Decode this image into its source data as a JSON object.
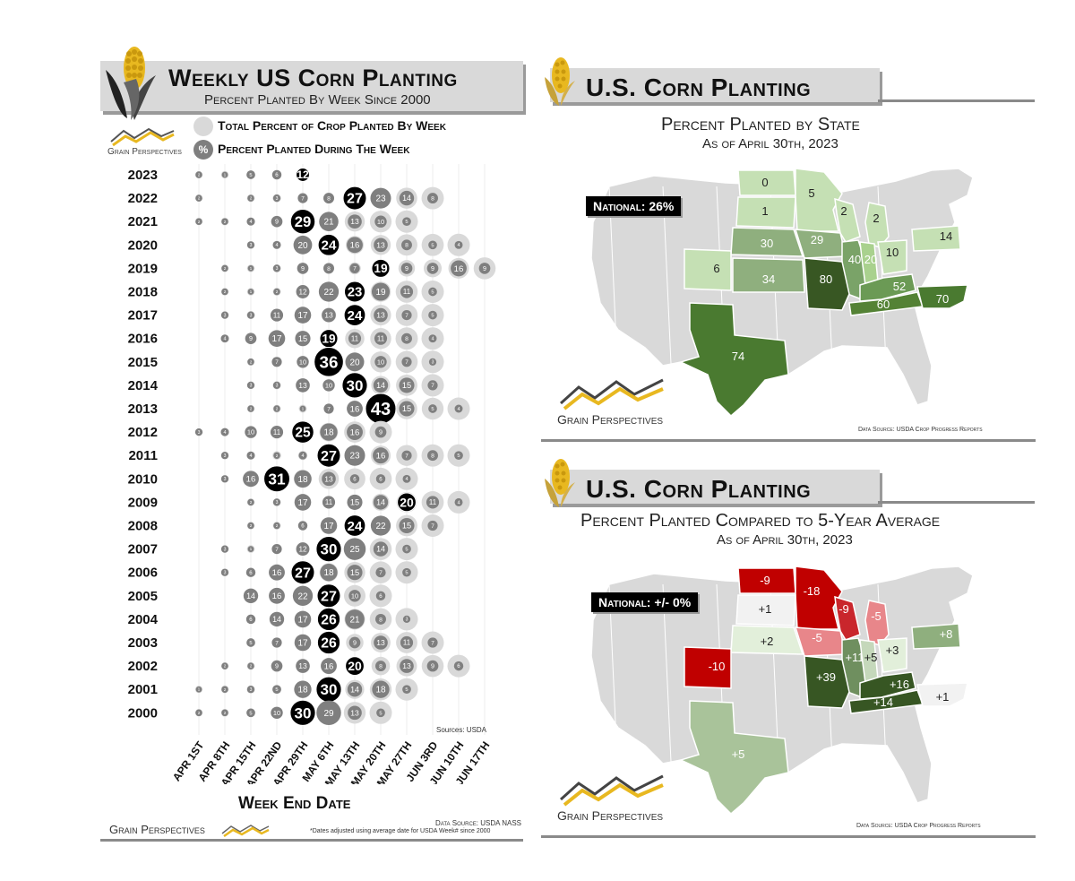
{
  "left": {
    "title": "Weekly US Corn Planting",
    "subtitle": "Percent Planted By Week Since 2000",
    "brand": "Grain Perspectives",
    "legend": [
      {
        "symbol": "",
        "label": "Total Percent of Crop Planted By Week"
      },
      {
        "symbol": "%",
        "label": "Percent Planted During The Week"
      }
    ],
    "sources_note": "Sources: USDA",
    "x_axis_title": "Week End Date",
    "data_source": "Data Source: USDA NASS",
    "footnote": "*Dates adjusted using average date for USDA Week# since 2000",
    "footer_brand": "Grain Perspectives"
  },
  "chart_data": {
    "type": "scatter",
    "title": "Weekly US Corn Planting",
    "subtitle": "Percent Planted By Week Since 2000",
    "xlabel": "Week End Date",
    "weeks": [
      "Apr 1st",
      "Apr 8th",
      "Apr 15th",
      "Apr 22nd",
      "Apr 29th",
      "May 6th",
      "May 13th",
      "May 20th",
      "May 27th",
      "Jun 3rd",
      "Jun 10th",
      "Jun 17th"
    ],
    "years": [
      "2023",
      "2022",
      "2021",
      "2020",
      "2019",
      "2018",
      "2017",
      "2016",
      "2015",
      "2014",
      "2013",
      "2012",
      "2011",
      "2010",
      "2009",
      "2008",
      "2007",
      "2006",
      "2005",
      "2004",
      "2003",
      "2002",
      "2001",
      "2000"
    ],
    "weekly_percent": [
      [
        2,
        1,
        5,
        6,
        12,
        null,
        null,
        null,
        null,
        null,
        null,
        null
      ],
      [
        2,
        null,
        2,
        3,
        7,
        8,
        27,
        23,
        14,
        8,
        null,
        null
      ],
      [
        2,
        2,
        4,
        9,
        29,
        21,
        13,
        10,
        5,
        null,
        null,
        null
      ],
      [
        null,
        null,
        3,
        4,
        20,
        24,
        16,
        13,
        8,
        5,
        4,
        null
      ],
      [
        null,
        2,
        1,
        3,
        9,
        8,
        7,
        19,
        9,
        9,
        16,
        9
      ],
      [
        null,
        2,
        1,
        2,
        12,
        22,
        23,
        19,
        11,
        5,
        null,
        null
      ],
      [
        null,
        3,
        3,
        11,
        17,
        13,
        24,
        13,
        7,
        5,
        null,
        null
      ],
      [
        null,
        4,
        9,
        17,
        15,
        19,
        11,
        11,
        8,
        4,
        null,
        null
      ],
      [
        null,
        null,
        2,
        7,
        10,
        36,
        20,
        10,
        7,
        3,
        null,
        null
      ],
      [
        null,
        null,
        3,
        3,
        13,
        10,
        30,
        14,
        15,
        7,
        null,
        null
      ],
      [
        null,
        null,
        2,
        2,
        1,
        7,
        16,
        43,
        15,
        5,
        4,
        null
      ],
      [
        3,
        4,
        10,
        11,
        25,
        18,
        16,
        9,
        null,
        null,
        null,
        null
      ],
      [
        null,
        3,
        4,
        2,
        4,
        27,
        23,
        16,
        7,
        8,
        5,
        null
      ],
      [
        null,
        3,
        16,
        31,
        18,
        13,
        6,
        6,
        4,
        null,
        null,
        null
      ],
      [
        null,
        null,
        2,
        3,
        17,
        11,
        15,
        14,
        20,
        11,
        4,
        null
      ],
      [
        null,
        null,
        2,
        2,
        6,
        17,
        24,
        22,
        15,
        7,
        null,
        null
      ],
      [
        null,
        3,
        1,
        7,
        12,
        30,
        25,
        14,
        5,
        null,
        null,
        null
      ],
      [
        null,
        3,
        6,
        16,
        27,
        18,
        15,
        7,
        5,
        null,
        null,
        null
      ],
      [
        null,
        null,
        14,
        16,
        22,
        27,
        10,
        6,
        null,
        null,
        null,
        null
      ],
      [
        null,
        null,
        6,
        14,
        17,
        26,
        21,
        8,
        3,
        null,
        null,
        null
      ],
      [
        null,
        null,
        5,
        7,
        17,
        26,
        9,
        13,
        11,
        7,
        null,
        null
      ],
      [
        null,
        2,
        2,
        9,
        13,
        16,
        20,
        8,
        13,
        9,
        6,
        null
      ],
      [
        1,
        2,
        3,
        5,
        18,
        30,
        14,
        18,
        5,
        null,
        null,
        null
      ],
      [
        2,
        2,
        5,
        10,
        30,
        29,
        13,
        5,
        null,
        null,
        null,
        null
      ]
    ]
  },
  "map1": {
    "title": "U.S. Corn Planting",
    "subtitle": "Percent Planted by State",
    "date": "As of April 30th, 2023",
    "national": "National: 26%",
    "brand": "Grain Perspectives",
    "source": "Data Source: USDA Crop Progress Reports",
    "states": [
      {
        "state": "ND",
        "value": "0",
        "color": "#c5e0b4"
      },
      {
        "state": "MN",
        "value": "5",
        "color": "#c5e0b4"
      },
      {
        "state": "SD",
        "value": "1",
        "color": "#c5e0b4"
      },
      {
        "state": "WI",
        "value": "2",
        "color": "#c5e0b4"
      },
      {
        "state": "MI",
        "value": "2",
        "color": "#c5e0b4"
      },
      {
        "state": "NE",
        "value": "30",
        "color": "#8faf7e"
      },
      {
        "state": "IA",
        "value": "29",
        "color": "#8faf7e"
      },
      {
        "state": "IL",
        "value": "40",
        "color": "#7aa368"
      },
      {
        "state": "IN",
        "value": "20",
        "color": "#a9d18e"
      },
      {
        "state": "OH",
        "value": "10",
        "color": "#c5e0b4"
      },
      {
        "state": "PA",
        "value": "14",
        "color": "#c5e0b4"
      },
      {
        "state": "CO",
        "value": "6",
        "color": "#c5e0b4"
      },
      {
        "state": "KS",
        "value": "34",
        "color": "#8faf7e"
      },
      {
        "state": "MO",
        "value": "80",
        "color": "#385723"
      },
      {
        "state": "KY",
        "value": "52",
        "color": "#6b9a55"
      },
      {
        "state": "TN",
        "value": "60",
        "color": "#548235"
      },
      {
        "state": "NC",
        "value": "70",
        "color": "#4a7a30"
      },
      {
        "state": "TX",
        "value": "74",
        "color": "#4a7a30"
      }
    ]
  },
  "map2": {
    "title": "U.S. Corn Planting",
    "subtitle": "Percent Planted Compared to 5-Year Average",
    "date": "As of April 30th, 2023",
    "national": "National: +/- 0%",
    "brand": "Grain Perspectives",
    "source": "Data Source: USDA Crop Progress Reports",
    "states": [
      {
        "state": "ND",
        "value": "-9",
        "color": "#c00000"
      },
      {
        "state": "MN",
        "value": "-18",
        "color": "#c00000"
      },
      {
        "state": "WI",
        "value": "-9",
        "color": "#c9262c"
      },
      {
        "state": "MI",
        "value": "-5",
        "color": "#e8868a"
      },
      {
        "state": "SD",
        "value": "+1",
        "color": "#f2f2f2"
      },
      {
        "state": "IA",
        "value": "-5",
        "color": "#e8868a"
      },
      {
        "state": "NE",
        "value": "+2",
        "color": "#e2efda"
      },
      {
        "state": "CO",
        "value": "-10",
        "color": "#c00000"
      },
      {
        "state": "IL",
        "value": "+11",
        "color": "#6f8f5f"
      },
      {
        "state": "IN",
        "value": "+5",
        "color": "#c5d8bb"
      },
      {
        "state": "OH",
        "value": "+3",
        "color": "#e2efda"
      },
      {
        "state": "PA",
        "value": "+8",
        "color": "#8faf7e"
      },
      {
        "state": "MO",
        "value": "+39",
        "color": "#375623"
      },
      {
        "state": "KY",
        "value": "+16",
        "color": "#375623"
      },
      {
        "state": "TN",
        "value": "+14",
        "color": "#375623"
      },
      {
        "state": "NC",
        "value": "+1",
        "color": "#f2f2f2"
      },
      {
        "state": "TX",
        "value": "+5",
        "color": "#a9c39a"
      }
    ]
  },
  "colors": {
    "banner": "#d9d9d9",
    "corn_yellow": "#e8b820",
    "husk_dark": "#222222",
    "bubble_light": "#d9d9d9",
    "bubble_mid": "#7f7f7f",
    "bubble_peak": "#000000",
    "map_base": "#d9d9d9"
  }
}
